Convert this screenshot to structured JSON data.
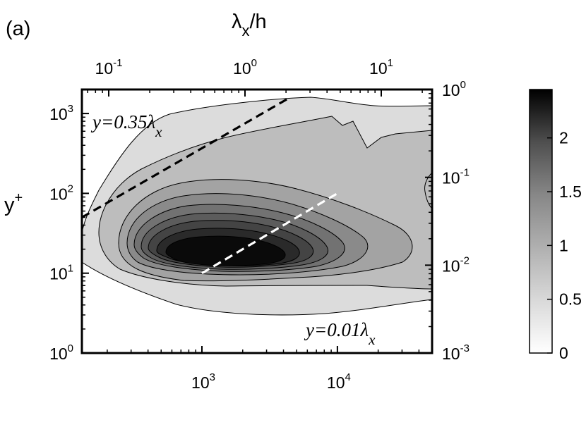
{
  "chart_data": {
    "type": "heatmap",
    "panel_label": "(a)",
    "top_axis_label": {
      "main": "λ",
      "sub": "x",
      "rest": "/h"
    },
    "left_axis_label": {
      "main": "y",
      "sup": "+"
    },
    "bottom_axis": {
      "scale": "log",
      "range": [
        130,
        50000
      ],
      "ticks": [
        {
          "value": 1000,
          "base": "10",
          "exp": "3"
        },
        {
          "value": 10000,
          "base": "10",
          "exp": "4"
        }
      ]
    },
    "left_axis": {
      "scale": "log",
      "range": [
        1,
        2000
      ],
      "ticks": [
        {
          "value": 1,
          "base": "10",
          "exp": "0"
        },
        {
          "value": 10,
          "base": "10",
          "exp": "1"
        },
        {
          "value": 100,
          "base": "10",
          "exp": "2"
        },
        {
          "value": 1000,
          "base": "10",
          "exp": "3"
        }
      ]
    },
    "top_axis": {
      "scale": "log",
      "ticks": [
        {
          "value": 0.1,
          "base": "10",
          "exp": "-1"
        },
        {
          "value": 1,
          "base": "10",
          "exp": "0"
        },
        {
          "value": 10,
          "base": "10",
          "exp": "1"
        }
      ]
    },
    "right_axis": {
      "scale": "log",
      "ticks": [
        {
          "value": 0.001,
          "base": "10",
          "exp": "-3"
        },
        {
          "value": 0.01,
          "base": "10",
          "exp": "-2"
        },
        {
          "value": 0.1,
          "base": "10",
          "exp": "-1"
        },
        {
          "value": 1,
          "base": "10",
          "exp": "0"
        }
      ]
    },
    "colorbar": {
      "range": [
        0,
        2.45
      ],
      "ticks": [
        {
          "value": 0,
          "label": "0"
        },
        {
          "value": 0.5,
          "label": "0.5"
        },
        {
          "value": 1,
          "label": "1"
        },
        {
          "value": 1.5,
          "label": "1.5"
        },
        {
          "value": 2,
          "label": "2"
        }
      ]
    },
    "contour_levels": [
      0.25,
      0.5,
      0.75,
      1.0,
      1.25,
      1.5,
      1.75,
      2.0,
      2.25
    ],
    "level_colors": [
      "#dcdcdc",
      "#bdbdbd",
      "#a3a3a3",
      "#8a8a8a",
      "#727272",
      "#5c5c5c",
      "#444444",
      "#2a2a2a",
      "#0a0a0a"
    ],
    "reference_lines": [
      {
        "label": "y=0.35λ",
        "label_sub": "x",
        "color": "#000000",
        "slope": 0.35,
        "points": [
          {
            "x": 130,
            "y": 50
          },
          {
            "x": 4500,
            "y": 1600
          }
        ]
      },
      {
        "label": "y=0.01λ",
        "label_sub": "x",
        "color": "#ffffff",
        "slope": 0.01,
        "points": [
          {
            "x": 1000,
            "y": 10
          },
          {
            "x": 10000,
            "y": 100
          }
        ]
      }
    ],
    "peak": {
      "x": 1800,
      "y": 15,
      "value": 2.45
    }
  }
}
